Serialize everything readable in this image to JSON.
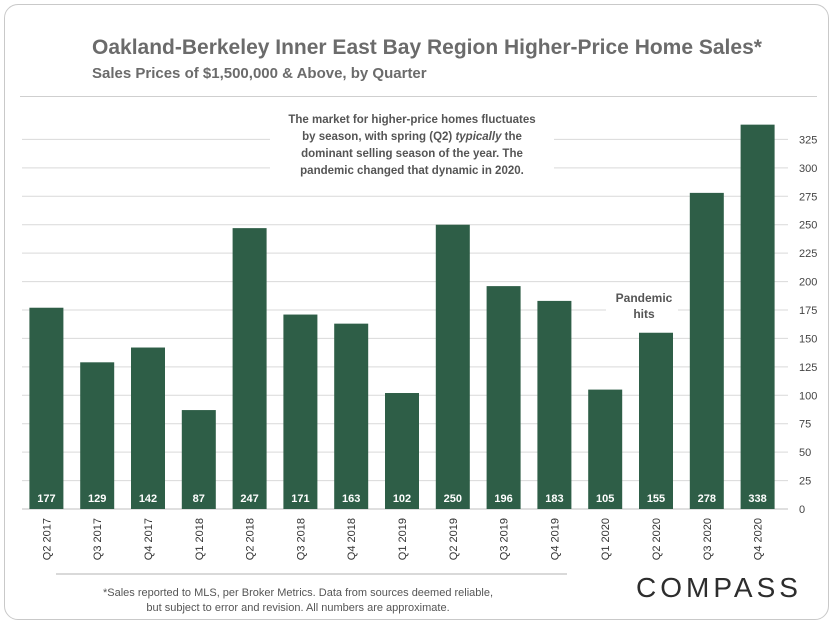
{
  "header": {
    "title": "Oakland-Berkeley Inner East Bay Region Higher-Price Home Sales*",
    "subtitle": "Sales Prices of $1,500,000 & Above, by Quarter"
  },
  "annotations": {
    "market_note_lines": [
      "The market for higher-price homes fluctuates",
      "by season, with spring (Q2) typically the",
      "dominant selling season of the year.  The",
      "pandemic changed that dynamic in 2020."
    ],
    "pandemic_lines": [
      "Pandemic",
      "hits"
    ]
  },
  "footer": {
    "footnote_line1": "*Sales reported to MLS, per Broker Metrics. Data from sources deemed reliable,",
    "footnote_line2": "but subject to error and revision.  All numbers are approximate.",
    "brand": "COMPASS"
  },
  "colors": {
    "bar": "#2e5e47",
    "title": "#6b6b6b",
    "grid": "#d9d9d9",
    "label_text": "#ffffff"
  },
  "chart_data": {
    "type": "bar",
    "title": "Oakland-Berkeley Inner East Bay Region Higher-Price Home Sales*",
    "subtitle": "Sales Prices of $1,500,000 & Above, by Quarter",
    "xlabel": "",
    "ylabel": "",
    "categories": [
      "Q2 2017",
      "Q3 2017",
      "Q4 2017",
      "Q1 2018",
      "Q2 2018",
      "Q3 2018",
      "Q4 2018",
      "Q1 2019",
      "Q2 2019",
      "Q3 2019",
      "Q4 2019",
      "Q1 2020",
      "Q2 2020",
      "Q3 2020",
      "Q4 2020"
    ],
    "values": [
      177,
      129,
      142,
      87,
      247,
      171,
      163,
      102,
      250,
      196,
      183,
      105,
      155,
      278,
      338
    ],
    "ylim": [
      0,
      350
    ],
    "yticks": [
      0,
      25,
      50,
      75,
      100,
      125,
      150,
      175,
      200,
      225,
      250,
      275,
      300,
      325
    ],
    "grid": true,
    "y_axis_side": "right",
    "legend": "none",
    "data_labels": "inside-bottom"
  }
}
